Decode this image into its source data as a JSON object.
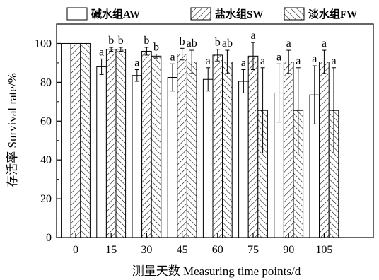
{
  "chart_data": {
    "type": "bar",
    "xlabel": "测量天数 Measuring time points/d",
    "ylabel": "存活率 Survival rate/%",
    "ylim": [
      0,
      110
    ],
    "yticks": [
      0,
      20,
      40,
      60,
      80,
      100
    ],
    "categories": [
      "0",
      "15",
      "30",
      "45",
      "60",
      "75",
      "90",
      "105"
    ],
    "legend_position": "top",
    "grid": false,
    "series": [
      {
        "name": "碱水组AW",
        "pattern": "blank",
        "values": [
          100,
          88,
          83.5,
          82.5,
          81.5,
          80.5,
          74.5,
          73.5
        ],
        "errors": [
          0,
          4,
          3,
          7,
          6,
          6,
          15,
          15
        ],
        "labels": [
          "",
          "a",
          "a",
          "a",
          "a",
          "a",
          "a",
          "a"
        ]
      },
      {
        "name": "盐水组SW",
        "pattern": "forward-hatch",
        "values": [
          100,
          97,
          96,
          94.5,
          94,
          93.5,
          90.5,
          90.5
        ],
        "errors": [
          0,
          1,
          2,
          3,
          3,
          7,
          6,
          6
        ],
        "labels": [
          "",
          "b",
          "b",
          "b",
          "b",
          "a",
          "a",
          "a"
        ]
      },
      {
        "name": "淡水组FW",
        "pattern": "back-hatch",
        "values": [
          100,
          97,
          93.5,
          90.5,
          90.5,
          65.5,
          65.5,
          65.5
        ],
        "errors": [
          0,
          1,
          1,
          6,
          6,
          22,
          22,
          22
        ],
        "labels": [
          "",
          "b",
          "b",
          "ab",
          "ab",
          "a",
          "a",
          "a"
        ]
      }
    ]
  }
}
